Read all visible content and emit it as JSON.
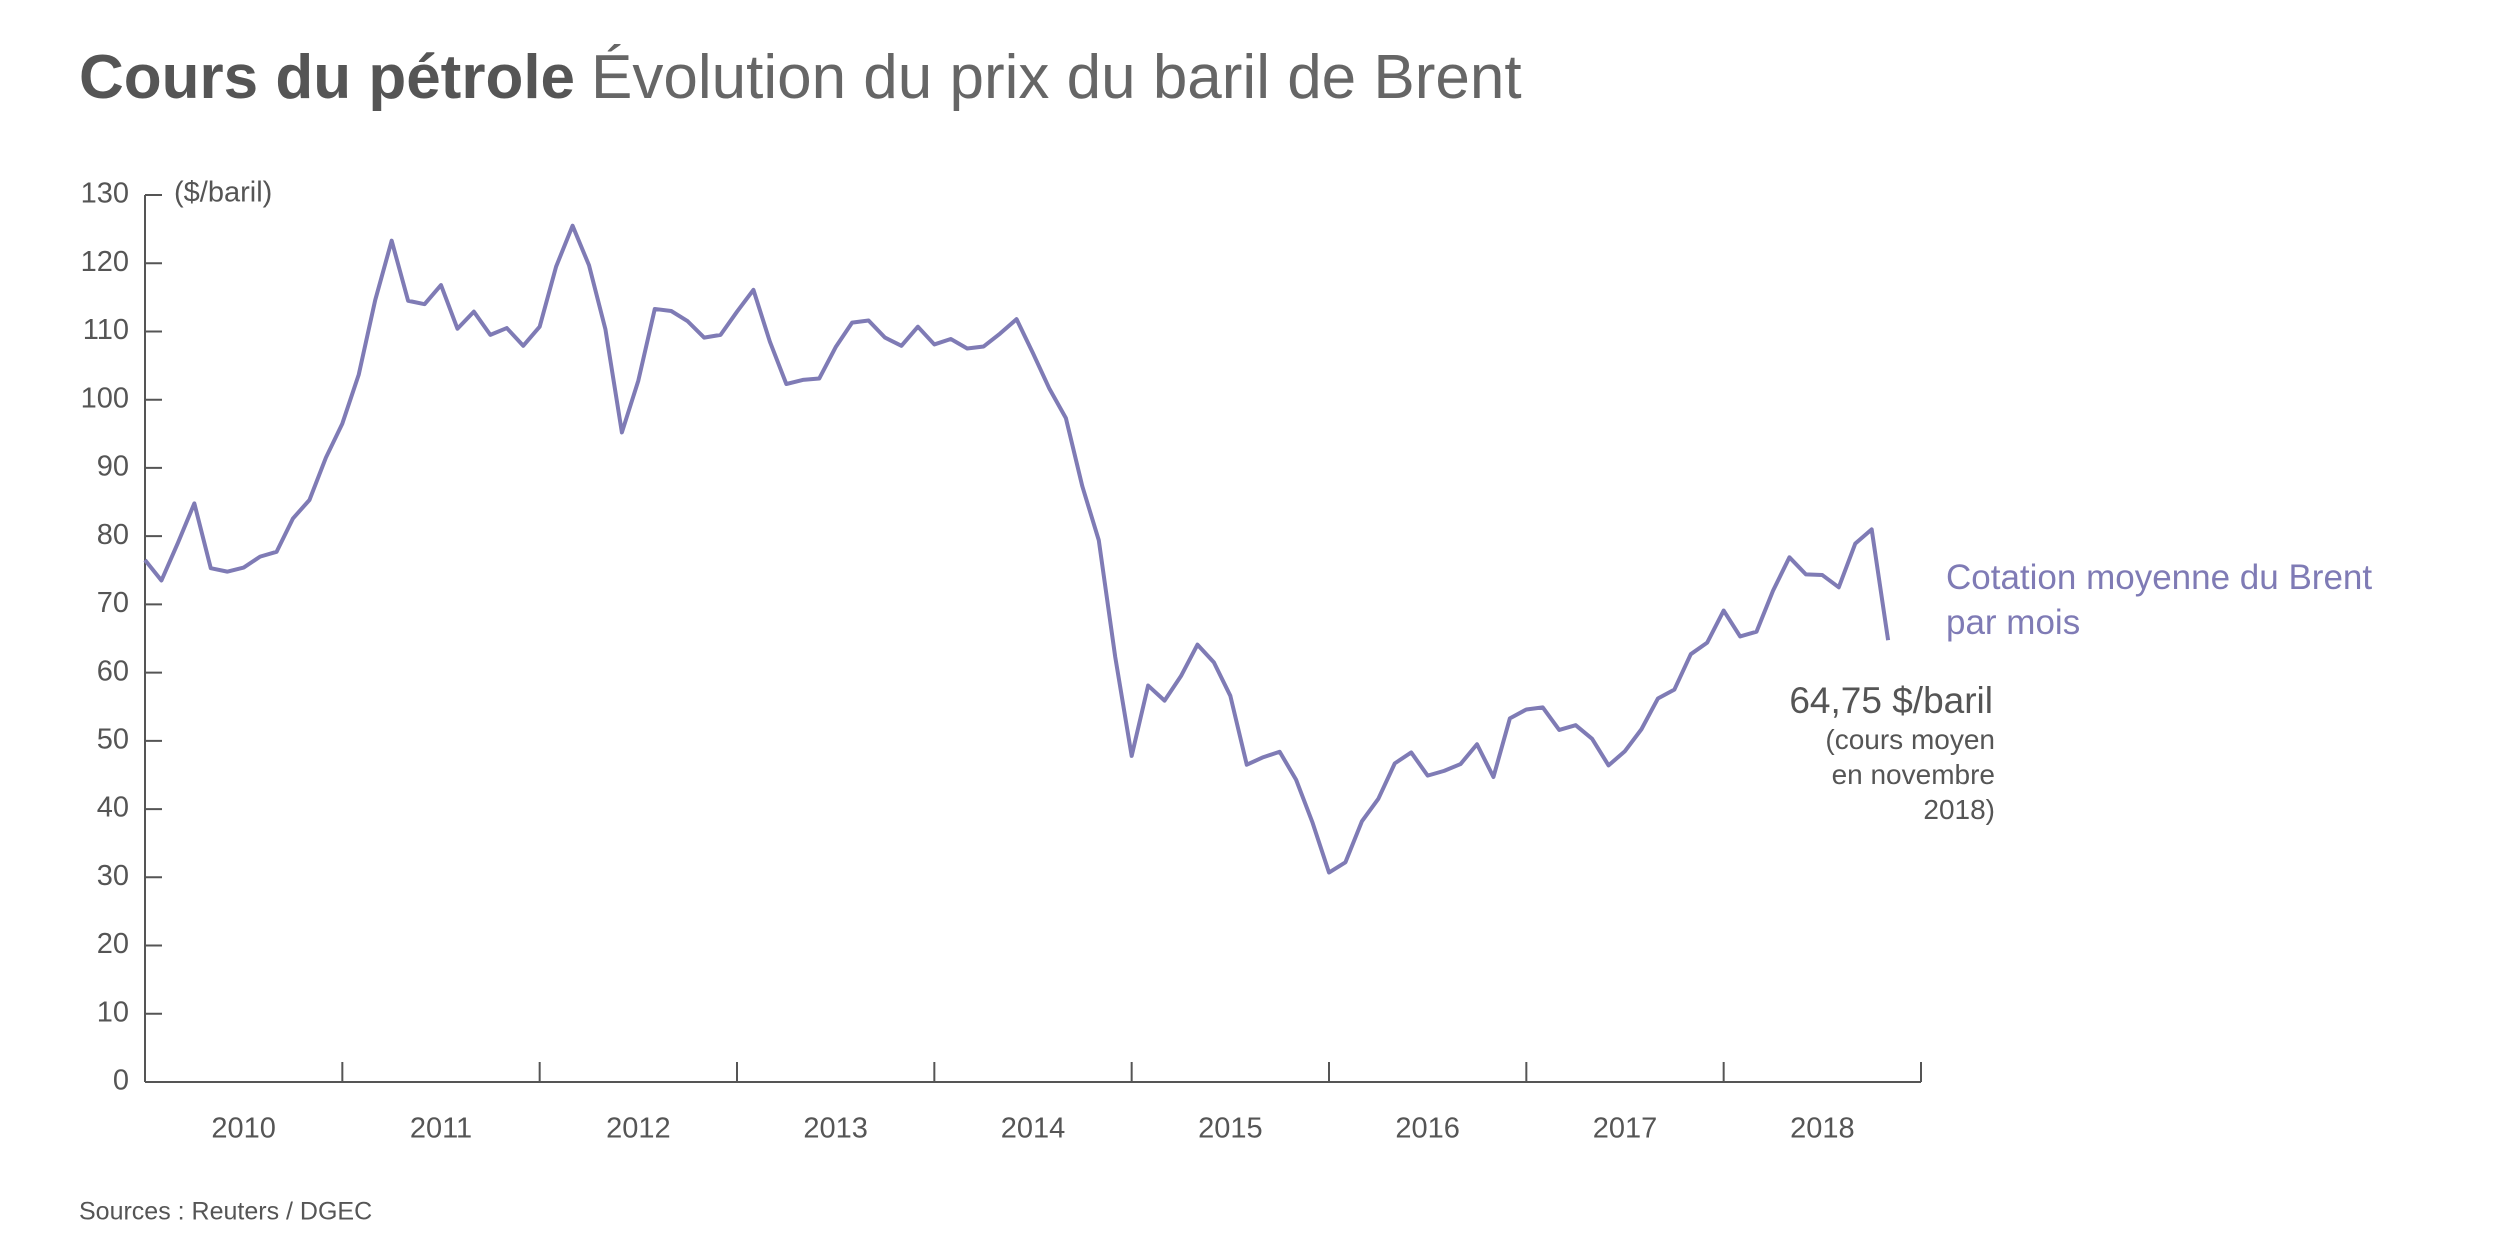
{
  "chart_data": {
    "type": "line",
    "title": "Cours du pétrole",
    "subtitle": "Évolution du prix du baril de Brent",
    "y_label": "($/baril)",
    "source": "Sources : Reuters / DGEC",
    "annotation": {
      "label": "64,75 $/baril",
      "note": "(cours moyen en novembre 2018)"
    },
    "year_labels": [
      "2010",
      "2011",
      "2012",
      "2013",
      "2014",
      "2015",
      "2016",
      "2017",
      "2018"
    ],
    "xlim": [
      "2010-01",
      "2019-01"
    ],
    "ylim": [
      0,
      130
    ],
    "yticks": [
      0,
      10,
      20,
      30,
      40,
      50,
      60,
      70,
      80,
      90,
      100,
      110,
      120,
      130
    ],
    "x": [
      "2010-01",
      "2010-02",
      "2010-03",
      "2010-04",
      "2010-05",
      "2010-06",
      "2010-07",
      "2010-08",
      "2010-09",
      "2010-10",
      "2010-11",
      "2010-12",
      "2011-01",
      "2011-02",
      "2011-03",
      "2011-04",
      "2011-05",
      "2011-06",
      "2011-07",
      "2011-08",
      "2011-09",
      "2011-10",
      "2011-11",
      "2011-12",
      "2012-01",
      "2012-02",
      "2012-03",
      "2012-04",
      "2012-05",
      "2012-06",
      "2012-07",
      "2012-08",
      "2012-09",
      "2012-10",
      "2012-11",
      "2012-12",
      "2013-01",
      "2013-02",
      "2013-03",
      "2013-04",
      "2013-05",
      "2013-06",
      "2013-07",
      "2013-08",
      "2013-09",
      "2013-10",
      "2013-11",
      "2013-12",
      "2014-01",
      "2014-02",
      "2014-03",
      "2014-04",
      "2014-05",
      "2014-06",
      "2014-07",
      "2014-08",
      "2014-09",
      "2014-10",
      "2014-11",
      "2014-12",
      "2015-01",
      "2015-02",
      "2015-03",
      "2015-04",
      "2015-05",
      "2015-06",
      "2015-07",
      "2015-08",
      "2015-09",
      "2015-10",
      "2015-11",
      "2015-12",
      "2016-01",
      "2016-02",
      "2016-03",
      "2016-04",
      "2016-05",
      "2016-06",
      "2016-07",
      "2016-08",
      "2016-09",
      "2016-10",
      "2016-11",
      "2016-12",
      "2017-01",
      "2017-02",
      "2017-03",
      "2017-04",
      "2017-05",
      "2017-06",
      "2017-07",
      "2017-08",
      "2017-09",
      "2017-10",
      "2017-11",
      "2017-12",
      "2018-01",
      "2018-02",
      "2018-03",
      "2018-04",
      "2018-05",
      "2018-06",
      "2018-07",
      "2018-08",
      "2018-09",
      "2018-10",
      "2018-11"
    ],
    "series": [
      {
        "name": "Cotation moyenne du Brent par mois",
        "color": "#7f7bb5",
        "values": [
          76.5,
          73.5,
          79,
          84.8,
          75.3,
          74.8,
          75.4,
          77,
          77.7,
          82.6,
          85.3,
          91.5,
          96.5,
          103.7,
          114.6,
          123.3,
          114.5,
          114,
          116.8,
          110.4,
          112.9,
          109.5,
          110.5,
          107.9,
          110.7,
          119.5,
          125.5,
          119.7,
          110.3,
          95.2,
          102.8,
          113.3,
          113,
          111.5,
          109.1,
          109.5,
          112.9,
          116.1,
          108.5,
          102.3,
          102.9,
          103.1,
          107.7,
          111.3,
          111.6,
          109.1,
          107.9,
          110.7,
          108.1,
          108.9,
          107.5,
          107.8,
          109.7,
          111.8,
          106.8,
          101.6,
          97.3,
          87.3,
          79.4,
          62.3,
          47.8,
          58.1,
          55.9,
          59.5,
          64.1,
          61.5,
          56.6,
          46.5,
          47.6,
          48.4,
          44.3,
          38,
          30.7,
          32.2,
          38.2,
          41.5,
          46.7,
          48.3,
          44.9,
          45.6,
          46.6,
          49.5,
          44.7,
          53.3,
          54.6,
          54.9,
          51.6,
          52.3,
          50.3,
          46.4,
          48.5,
          51.7,
          56.2,
          57.5,
          62.7,
          64.4,
          69.1,
          65.3,
          66,
          72,
          76.9,
          74.4,
          74.3,
          72.5,
          78.9,
          81,
          64.75
        ]
      }
    ]
  }
}
